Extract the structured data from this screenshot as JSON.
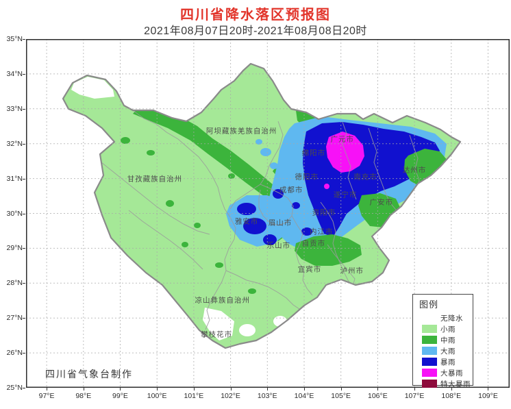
{
  "title": "四川省降水落区预报图",
  "subtitle": "2021年08月07日20时-2021年08月08日20时",
  "footer": "四川省气象台制作",
  "colors": {
    "title_red": "#E2352B",
    "province_boundary": "#8a8a8a",
    "inner_boundary": "#9b9b9b",
    "grid": "#a8a8a8",
    "frame": "#2b2b2b"
  },
  "axes": {
    "lat_ticks": [
      "35°N",
      "34°N",
      "33°N",
      "32°N",
      "31°N",
      "30°N",
      "29°N",
      "28°N",
      "27°N",
      "26°N",
      "25°N"
    ],
    "lon_ticks": [
      "97°E",
      "98°E",
      "99°E",
      "100°E",
      "101°E",
      "102°E",
      "103°E",
      "104°E",
      "105°E",
      "106°E",
      "107°E",
      "108°E",
      "109°E"
    ]
  },
  "legend": {
    "title": "图例",
    "items": [
      {
        "key": "none",
        "label": "无降水",
        "color": "#FFFFFF"
      },
      {
        "key": "light",
        "label": "小雨",
        "color": "#A5E897"
      },
      {
        "key": "mid",
        "label": "中雨",
        "color": "#3CB43C"
      },
      {
        "key": "heavy",
        "label": "大雨",
        "color": "#5FB8F0"
      },
      {
        "key": "storm",
        "label": "暴雨",
        "color": "#1111CF"
      },
      {
        "key": "hstorm",
        "label": "大暴雨",
        "color": "#F711F7"
      },
      {
        "key": "xstorm",
        "label": "特大暴雨",
        "color": "#8E0B3C"
      }
    ]
  },
  "map": {
    "labels": [
      {
        "name": "阿坝藏族羌族自治州",
        "lon": 102.3,
        "lat": 32.37
      },
      {
        "name": "甘孜藏族自治州",
        "lon": 99.94,
        "lat": 31.0
      },
      {
        "name": "凉山彝族自治州",
        "lon": 101.78,
        "lat": 27.51
      },
      {
        "name": "攀枝花市",
        "lon": 101.62,
        "lat": 26.53
      },
      {
        "name": "广元市",
        "lon": 105.04,
        "lat": 32.13
      },
      {
        "name": "绵阳市",
        "lon": 104.26,
        "lat": 31.74
      },
      {
        "name": "德阳市",
        "lon": 104.07,
        "lat": 31.05
      },
      {
        "name": "成都市",
        "lon": 103.65,
        "lat": 30.68
      },
      {
        "name": "遂宁市",
        "lon": 105.12,
        "lat": 30.54
      },
      {
        "name": "南充市",
        "lon": 105.67,
        "lat": 31.05
      },
      {
        "name": "达州市",
        "lon": 107.0,
        "lat": 31.25
      },
      {
        "name": "广安市",
        "lon": 106.1,
        "lat": 30.32
      },
      {
        "name": "资阳市",
        "lon": 104.54,
        "lat": 30.03
      },
      {
        "name": "雅安市",
        "lon": 102.44,
        "lat": 29.77
      },
      {
        "name": "眉山市",
        "lon": 103.35,
        "lat": 29.73
      },
      {
        "name": "内江市",
        "lon": 104.47,
        "lat": 29.48
      },
      {
        "name": "自贡市",
        "lon": 104.26,
        "lat": 29.15
      },
      {
        "name": "乐山市",
        "lon": 103.31,
        "lat": 29.09
      },
      {
        "name": "宜宾市",
        "lon": 104.15,
        "lat": 28.4
      },
      {
        "name": "泸州市",
        "lon": 105.3,
        "lat": 28.36
      }
    ]
  }
}
